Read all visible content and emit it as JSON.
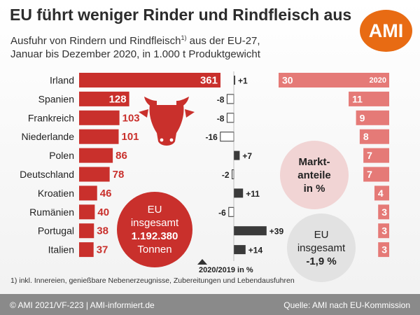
{
  "title": "EU führt weniger Rinder und Rindfleisch aus",
  "logo": "AMI",
  "subtitle": {
    "line1_a": "Ausfuhr von Rindern und Rindfleisch",
    "line1_sup": "1)",
    "line1_b": " aus der EU-27,",
    "line2": "Januar bis Dezember 2020, in 1.000 t Produktgewicht"
  },
  "chart_data": {
    "type": "bar",
    "categories": [
      "Irland",
      "Spanien",
      "Frankreich",
      "Niederlande",
      "Polen",
      "Deutschland",
      "Kroatien",
      "Rumänien",
      "Portugal",
      "Italien"
    ],
    "series": [
      {
        "name": "",
        "values": [
          361,
          128,
          103,
          101,
          86,
          78,
          46,
          40,
          38,
          37
        ]
      },
      {
        "name": "2020/2019 in %",
        "values": [
          1,
          -8,
          -8,
          -16,
          7,
          -2,
          11,
          -6,
          39,
          14
        ]
      },
      {
        "name": "Marktanteile in %",
        "values": [
          30,
          11,
          9,
          8,
          7,
          7,
          4,
          3,
          3,
          3
        ]
      }
    ],
    "change_labels": [
      "+1",
      "-8",
      "-8",
      "-16",
      "+7",
      "-2",
      "+11",
      "-6",
      "+39",
      "+14"
    ],
    "share_year_label": "2020",
    "change_axis_label": "2020/2019 in %",
    "colors": {
      "main": "#c9302c",
      "share": "#e57a77",
      "change": "#3a3a3a"
    }
  },
  "eu_bubble": {
    "line1": "EU",
    "line2": "insgesamt",
    "value": "1.192.380",
    "unit": "Tonnen"
  },
  "share_bubble": {
    "line1": "Markt-",
    "line2": "anteile",
    "line3": "in %"
  },
  "total_bubble": {
    "line1": "EU",
    "line2": "insgesamt",
    "value": "-1,9 %"
  },
  "icon": "cow-head-icon",
  "footnote": "1) inkl. Innereien, genießbare Nebenerzeugnisse, Zubereitungen und Lebendausfuhren",
  "footer": {
    "left": "© AMI 2021/VF-223 | AMI-informiert.de",
    "right": "Quelle: AMI nach EU-Kommission"
  }
}
